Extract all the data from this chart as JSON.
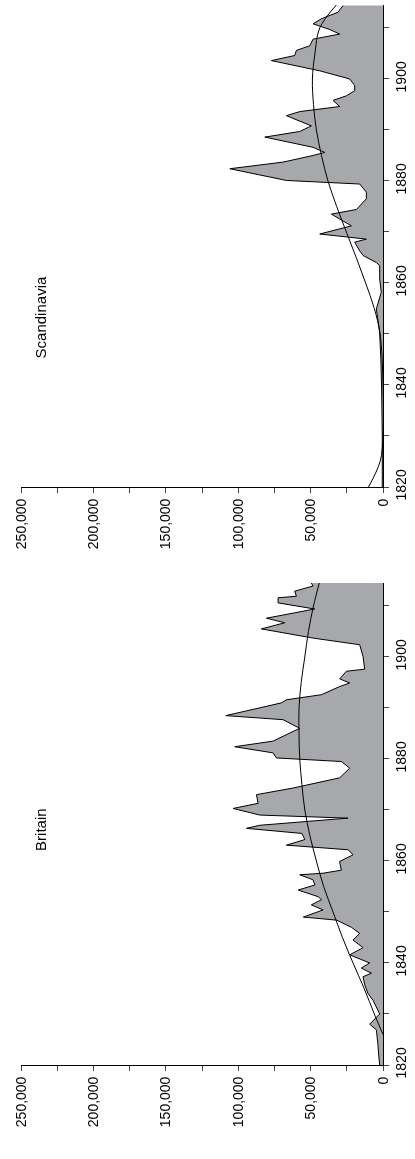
{
  "chart_data": [
    {
      "type": "area",
      "title": "Britain",
      "orientation": "horizontal",
      "ylim": [
        1820,
        1914.5
      ],
      "xlim": [
        250000,
        0
      ],
      "yticks": [
        1820,
        {
          "value": 1830,
          "label": null
        },
        1840,
        {
          "value": 1850,
          "label": null
        },
        1860,
        {
          "value": 1870,
          "label": null
        },
        1880,
        {
          "value": 1890,
          "label": null
        },
        1900,
        {
          "value": 1910,
          "label": null
        }
      ],
      "xticks": [
        {
          "value": 0,
          "label": "0"
        },
        {
          "value": 25000,
          "label": null
        },
        {
          "value": 50000,
          "label": "50,000"
        },
        {
          "value": 75000,
          "label": null
        },
        {
          "value": 100000,
          "label": "100,000"
        },
        {
          "value": 125000,
          "label": null
        },
        {
          "value": 150000,
          "label": "150,000"
        },
        {
          "value": 175000,
          "label": null
        },
        {
          "value": 200000,
          "label": "200,000"
        },
        {
          "value": 225000,
          "label": null
        },
        {
          "value": 250000,
          "label": "250,000"
        }
      ],
      "series": [
        {
          "color": "#a7a8ab",
          "x": [
            1820,
            1822,
            1824,
            1826.9,
            1828,
            1830,
            1832.7,
            1834,
            1835.7,
            1837.3,
            1838,
            1839,
            1840,
            1841.6,
            1843,
            1844.5,
            1845.8,
            1847,
            1848.4,
            1849,
            1850.4,
            1851.4,
            1852.4,
            1853,
            1854.3,
            1855.3,
            1856.3,
            1857.3,
            1857.6,
            1858.2,
            1859.9,
            1861.2,
            1862.2,
            1863.1,
            1864.2,
            1865.4,
            1866.4,
            1867,
            1868.4,
            1869,
            1870.3,
            1871.3,
            1873,
            1874.3,
            1876.3,
            1878.2,
            1879.5,
            1880.2,
            1881.2,
            1882.4,
            1883.5,
            1885.4,
            1886,
            1887.7,
            1888.5,
            1891,
            1891.6,
            1892.6,
            1894.2,
            1894.9,
            1895.7,
            1897.2,
            1897.6,
            1900.1,
            1902.4,
            1903.7,
            1905.5,
            1906.7,
            1907.6,
            1909.4,
            1910.6,
            1911.6,
            1911.9,
            1912.9,
            1913.9,
            1914.5
          ],
          "values": [
            2300,
            3000,
            3500,
            4600,
            9200,
            2300,
            6900,
            10350,
            12600,
            13800,
            8000,
            15000,
            9200,
            23000,
            13800,
            20700,
            16100,
            21850,
            32000,
            55000,
            41400,
            49500,
            42500,
            44800,
            58600,
            47000,
            48300,
            57500,
            41400,
            28750,
            30000,
            20700,
            24000,
            66700,
            54000,
            56000,
            94300,
            85100,
            24150,
            85000,
            103500,
            86250,
            87400,
            62100,
            29900,
            23000,
            28750,
            73600,
            76000,
            102350,
            75900,
            62100,
            57500,
            69000,
            108560,
            70150,
            66700,
            42550,
            29900,
            23000,
            29900,
            25300,
            12650,
            13800,
            16100,
            48300,
            84000,
            67850,
            80500,
            47150,
            72450,
            72450,
            59800,
            61000,
            48300,
            49500
          ]
        },
        {
          "type": "line",
          "color": "#000000",
          "x": [
            1826,
            1830,
            1835,
            1840,
            1845,
            1850,
            1855,
            1860,
            1865,
            1870,
            1875,
            1880,
            1885,
            1890,
            1895,
            1900,
            1905,
            1910,
            1914.5
          ],
          "values": [
            0,
            6000,
            13000,
            20700,
            28000,
            34500,
            41000,
            46000,
            50500,
            54000,
            56000,
            57500,
            58000,
            58000,
            56500,
            54000,
            51500,
            48000,
            44000
          ]
        }
      ]
    },
    {
      "type": "area",
      "title": "Scandinavia",
      "orientation": "horizontal",
      "ylim": [
        1820,
        1914.5
      ],
      "xlim": [
        250000,
        0
      ],
      "yticks": [
        1820,
        {
          "value": 1830,
          "label": null
        },
        1840,
        {
          "value": 1850,
          "label": null
        },
        1860,
        {
          "value": 1870,
          "label": null
        },
        1880,
        {
          "value": 1890,
          "label": null
        },
        1900,
        {
          "value": 1910,
          "label": null
        }
      ],
      "xticks": [
        {
          "value": 0,
          "label": "0"
        },
        {
          "value": 25000,
          "label": null
        },
        {
          "value": 50000,
          "label": "50,000"
        },
        {
          "value": 75000,
          "label": null
        },
        {
          "value": 100000,
          "label": "100,000"
        },
        {
          "value": 125000,
          "label": null
        },
        {
          "value": 150000,
          "label": "150,000"
        },
        {
          "value": 175000,
          "label": null
        },
        {
          "value": 200000,
          "label": "200,000"
        },
        {
          "value": 225000,
          "label": null
        },
        {
          "value": 250000,
          "label": "250,000"
        }
      ],
      "series": [
        {
          "color": "#a7a8ab",
          "x": [
            1820,
            1830,
            1840,
            1845,
            1850.3,
            1854.9,
            1858.2,
            1860.8,
            1863.4,
            1864,
            1865.4,
            1866.3,
            1868,
            1868.6,
            1869.6,
            1871.2,
            1873.5,
            1874.4,
            1876.5,
            1877.8,
            1879.4,
            1880.1,
            1882.4,
            1883.7,
            1885,
            1885.6,
            1886.6,
            1888.6,
            1889.7,
            1890.8,
            1892.8,
            1893.6,
            1894.6,
            1895.8,
            1896.7,
            1897.7,
            1898.7,
            1900,
            1901.6,
            1903.6,
            1904.6,
            1905.6,
            1906.5,
            1907.8,
            1908.8,
            1909.7,
            1910.8,
            1911.8,
            1913.1,
            1914.4
          ],
          "values": [
            500,
            500,
            1000,
            1500,
            2300,
            4600,
            1200,
            2300,
            2300,
            4600,
            13800,
            16100,
            19550,
            11500,
            43700,
            21850,
            35650,
            18400,
            11500,
            11500,
            16100,
            66700,
            105800,
            69000,
            48300,
            40250,
            48300,
            81650,
            57500,
            49450,
            66700,
            57500,
            29900,
            34500,
            25300,
            19550,
            19550,
            23000,
            43700,
            77050,
            61000,
            59800,
            50600,
            48300,
            29900,
            36800,
            48300,
            42550,
            31000,
            27600
          ]
        },
        {
          "type": "line",
          "color": "#000000",
          "x": [
            1820,
            1825,
            1830,
            1840,
            1850,
            1855,
            1860,
            1865,
            1870,
            1875,
            1880,
            1885,
            1890,
            1895,
            1900,
            1905,
            1910,
            1914.5
          ],
          "values": [
            10000,
            2000,
            0,
            0,
            2000,
            6000,
            12000,
            18500,
            25300,
            32000,
            38000,
            42500,
            46000,
            48000,
            48750,
            47000,
            43700,
            32200
          ]
        }
      ]
    }
  ]
}
